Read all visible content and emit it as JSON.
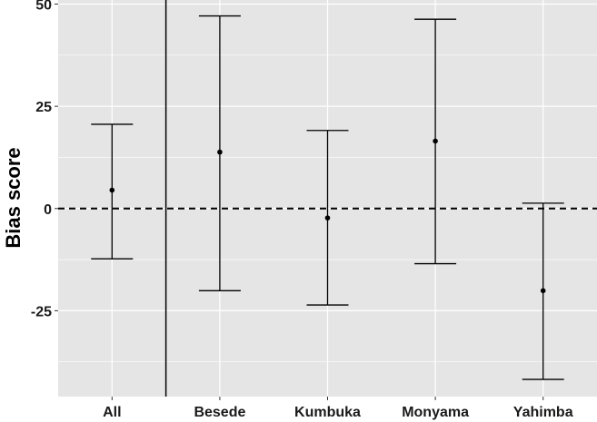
{
  "chart_data": {
    "type": "errorbar",
    "title": "",
    "xlabel": "",
    "ylabel": "Bias score",
    "categories": [
      "All",
      "Besede",
      "Kumbuka",
      "Monyama",
      "Yahimba"
    ],
    "points": [
      {
        "category": "All",
        "estimate": 4.5,
        "lower": -12.3,
        "upper": 20.6
      },
      {
        "category": "Besede",
        "estimate": 13.8,
        "lower": -20.1,
        "upper": 47.1
      },
      {
        "category": "Kumbuka",
        "estimate": -2.3,
        "lower": -23.6,
        "upper": 19.1
      },
      {
        "category": "Monyama",
        "estimate": 16.5,
        "lower": -13.5,
        "upper": 46.3
      },
      {
        "category": "Yahimba",
        "estimate": -20.1,
        "lower": -41.8,
        "upper": 1.3
      }
    ],
    "y_ticks": [
      50,
      25,
      0,
      -25
    ],
    "ylim": [
      -46,
      51
    ],
    "reference_line": {
      "y": 0,
      "style": "dashed"
    },
    "separator_after_category": "All",
    "background": "#e5e5e5",
    "grid": true,
    "grid_color": "#ffffff",
    "mark_color": "#000000"
  }
}
